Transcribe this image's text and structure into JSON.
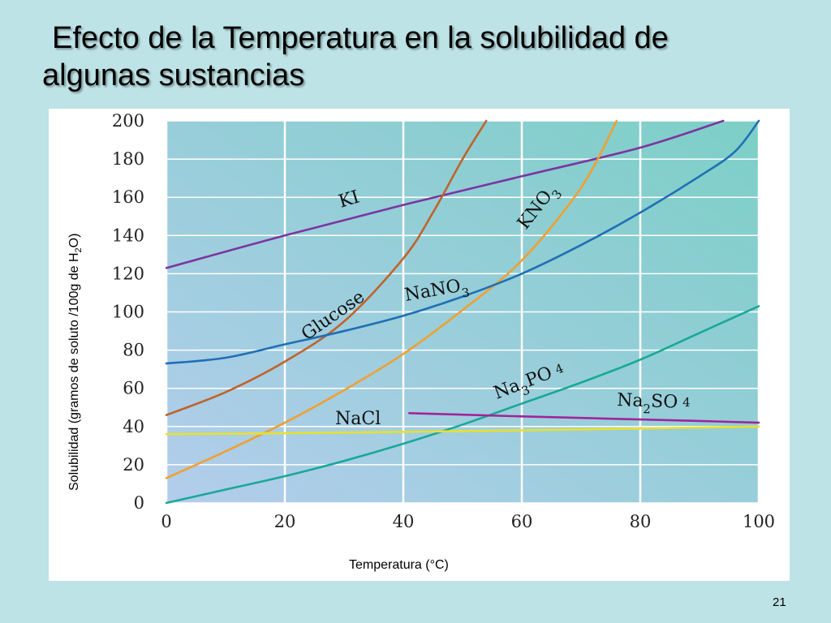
{
  "slide": {
    "title_line1": "Efecto de la Temperatura en la solubilidad de",
    "title_line2": "algunas sustancias",
    "page_number": "21"
  },
  "colors": {
    "background": "#bde3e6",
    "plot_bg_left": "#b3cdec",
    "plot_bg_right": "#7ccfc7",
    "gridline": "#ffffff"
  },
  "chart_data": {
    "type": "line",
    "xlabel_text": "Temperatura (",
    "xlabel_unit": "°C)",
    "ylabel_prefix": "Solubilidad (gramos de soluto /100g de H",
    "ylabel_sub": "2",
    "ylabel_suffix": "O)",
    "xlim": [
      0,
      100
    ],
    "ylim": [
      0,
      200
    ],
    "xticks": [
      "0",
      "20",
      "40",
      "60",
      "80",
      "100"
    ],
    "yticks": [
      "0",
      "20",
      "40",
      "60",
      "80",
      "100",
      "120",
      "140",
      "160",
      "180",
      "200"
    ],
    "grid": true,
    "series": [
      {
        "name": "KI",
        "label_main": "KI",
        "label_sub": "",
        "label_tail": "",
        "color": "#7b35a0",
        "x": [
          0,
          20,
          40,
          60,
          80,
          94
        ],
        "y": [
          123,
          140,
          156,
          171,
          186,
          200
        ]
      },
      {
        "name": "Glucose",
        "label_main": "Glucose",
        "label_sub": "",
        "label_tail": "",
        "color": "#c0632b",
        "x": [
          0,
          10,
          20,
          30,
          40,
          45,
          50,
          54
        ],
        "y": [
          46,
          58,
          74,
          95,
          128,
          152,
          180,
          200
        ]
      },
      {
        "name": "KNO3",
        "label_main": "KNO",
        "label_sub": "3",
        "label_tail": "",
        "color": "#f0a030",
        "x": [
          0,
          10,
          20,
          30,
          40,
          50,
          60,
          70,
          76
        ],
        "y": [
          13,
          27,
          42,
          59,
          78,
          101,
          127,
          165,
          200
        ]
      },
      {
        "name": "NaNO3",
        "label_main": "NaNO",
        "label_sub": "3",
        "label_tail": "",
        "color": "#1f6fb5",
        "x": [
          0,
          10,
          20,
          30,
          40,
          50,
          60,
          70,
          80,
          90,
          96,
          100
        ],
        "y": [
          73,
          76,
          83,
          90,
          98,
          108,
          120,
          135,
          152,
          171,
          184,
          200
        ]
      },
      {
        "name": "Na3PO4",
        "label_main": "Na",
        "label_sub": "3",
        "label_tail": "PO",
        "label_tail_sub": "4",
        "color": "#1aa898",
        "x": [
          0,
          10,
          20,
          30,
          40,
          50,
          60,
          70,
          80,
          90,
          100
        ],
        "y": [
          0,
          7,
          14,
          22,
          31,
          41,
          52,
          63,
          75,
          89,
          103
        ]
      },
      {
        "name": "Na2SO4",
        "label_main": "Na",
        "label_sub": "2",
        "label_tail": "SO",
        "label_tail_sub": "4",
        "color": "#a0259a",
        "x": [
          41,
          50,
          60,
          70,
          80,
          90,
          100
        ],
        "y": [
          47,
          46.2,
          45.3,
          44.5,
          43.7,
          42.9,
          42
        ]
      },
      {
        "name": "NaCl",
        "label_main": "NaCl",
        "label_sub": "",
        "label_tail": "",
        "color": "#e8e030",
        "x": [
          0,
          20,
          40,
          60,
          80,
          100
        ],
        "y": [
          36,
          36.5,
          37.2,
          38,
          39,
          40
        ]
      }
    ]
  }
}
